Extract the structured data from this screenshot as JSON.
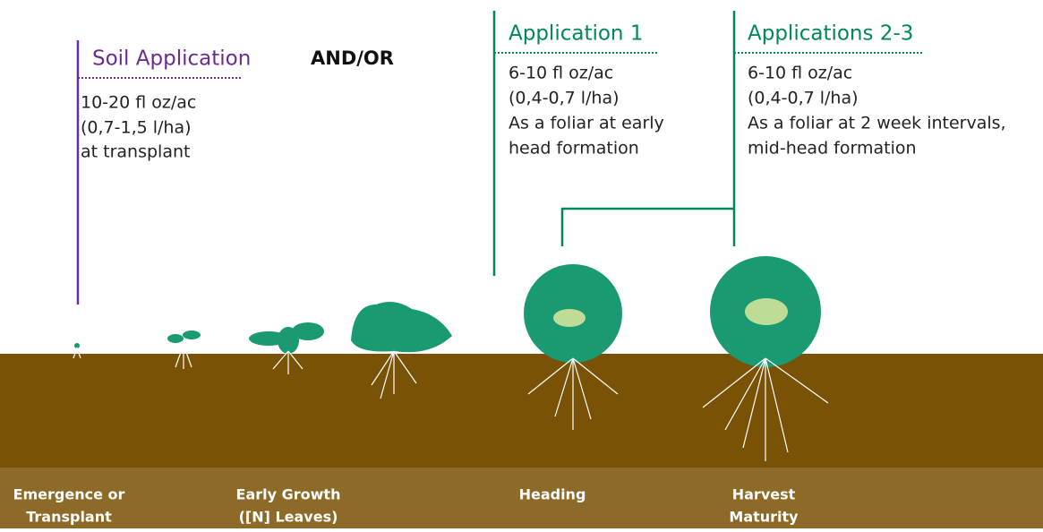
{
  "and_or": "AND/OR",
  "applications": [
    {
      "title": "Soil Application",
      "lines": [
        "10-20 fl oz/ac",
        "(0,7-1,5 l/ha)",
        "at transplant"
      ]
    },
    {
      "title": "Application 1",
      "lines": [
        "6-10 fl oz/ac",
        "(0,4-0,7 l/ha)",
        "As a foliar at early",
        "head formation"
      ]
    },
    {
      "title": "Applications 2-3",
      "lines": [
        "6-10 fl oz/ac",
        "(0,4-0,7 l/ha)",
        "As a foliar at 2 week intervals,",
        "mid-head formation"
      ]
    }
  ],
  "stages": [
    {
      "lines": [
        "Emergence or",
        "Transplant"
      ]
    },
    {
      "lines": [
        "Early Growth",
        "([N] Leaves)"
      ]
    },
    {
      "lines": [
        "Heading"
      ]
    },
    {
      "lines": [
        "Harvest",
        "Maturity"
      ]
    }
  ]
}
